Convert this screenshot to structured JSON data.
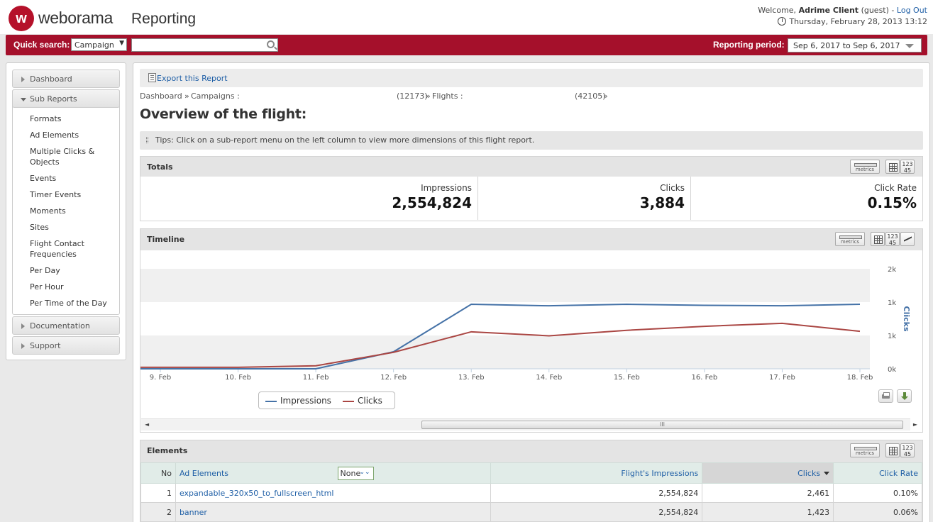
{
  "brand": {
    "logo_letter": "w",
    "name": "weborama",
    "product": "Reporting"
  },
  "user": {
    "welcome": "Welcome,",
    "name": "Adrime Client",
    "role": "(guest)",
    "separator": "-",
    "logout": "Log Out",
    "datetime": "Thursday, February 28, 2013 13:12"
  },
  "search": {
    "label": "Quick search:",
    "type_value": "Campaign",
    "placeholder": "",
    "period_label": "Reporting period:",
    "period_value": "Sep  6, 2017 to Sep  6, 2017"
  },
  "sidebar": {
    "dashboard": "Dashboard",
    "sub_reports": "Sub Reports",
    "items": [
      "Formats",
      "Ad Elements",
      "Multiple Clicks & Objects",
      "Events",
      "Timer Events",
      "Moments",
      "Sites",
      "Flight Contact Frequencies",
      "Per Day",
      "Per Hour",
      "Per Time of the Day"
    ],
    "documentation": "Documentation",
    "support": "Support"
  },
  "main": {
    "export": "Export this Report",
    "breadcrumb": {
      "dashboard": "Dashboard",
      "sep1": "»",
      "campaigns": "Campaigns :",
      "campaign_id": "(12173)",
      "sep2": "»",
      "flights": "Flights :",
      "flight_id": "(42105)",
      "sep3": "»"
    },
    "title": "Overview of the flight:",
    "tips": "Tips: Click on a sub-report menu on the left column to view more dimensions of this flight report."
  },
  "tools": {
    "metrics": "metrics",
    "num_top": "123",
    "num_bottom": "45"
  },
  "totals": {
    "title": "Totals",
    "impressions_label": "Impressions",
    "impressions_value": "2,554,824",
    "clicks_label": "Clicks",
    "clicks_value": "3,884",
    "rate_label": "Click Rate",
    "rate_value": "0.15%"
  },
  "timeline": {
    "title": "Timeline",
    "scroll_grip": "III"
  },
  "chart_data": {
    "type": "line",
    "categories": [
      "9. Feb",
      "10. Feb",
      "11. Feb",
      "12. Feb",
      "13. Feb",
      "14. Feb",
      "15. Feb",
      "16. Feb",
      "17. Feb",
      "18. Feb"
    ],
    "y_right_label": "Clicks",
    "y_right_ticks": [
      "2k",
      "1k",
      "1k",
      "0k"
    ],
    "series": [
      {
        "name": "Impressions",
        "color": "#4572a7",
        "values": [
          0,
          0,
          0,
          0.17,
          0.645,
          0.63,
          0.645,
          0.635,
          0.63,
          0.645
        ]
      },
      {
        "name": "Clicks",
        "color": "#aa4643",
        "values": [
          0.015,
          0.015,
          0.03,
          0.165,
          0.37,
          0.33,
          0.385,
          0.425,
          0.455,
          0.375
        ]
      }
    ],
    "ylim": [
      0,
      1
    ],
    "grid": true,
    "legend": "bottom-left"
  },
  "elements": {
    "title": "Elements",
    "columns": {
      "no": "No",
      "ad": "Ad Elements",
      "filter": "None",
      "impr": "Flight's Impressions",
      "clicks": "Clicks",
      "rate": "Click Rate"
    },
    "rows": [
      {
        "no": "1",
        "name": "expandable_320x50_to_fullscreen_html",
        "impr": "2,554,824",
        "clicks": "2,461",
        "rate": "0.10%"
      },
      {
        "no": "2",
        "name": "banner",
        "impr": "2,554,824",
        "clicks": "1,423",
        "rate": "0.06%"
      }
    ]
  }
}
